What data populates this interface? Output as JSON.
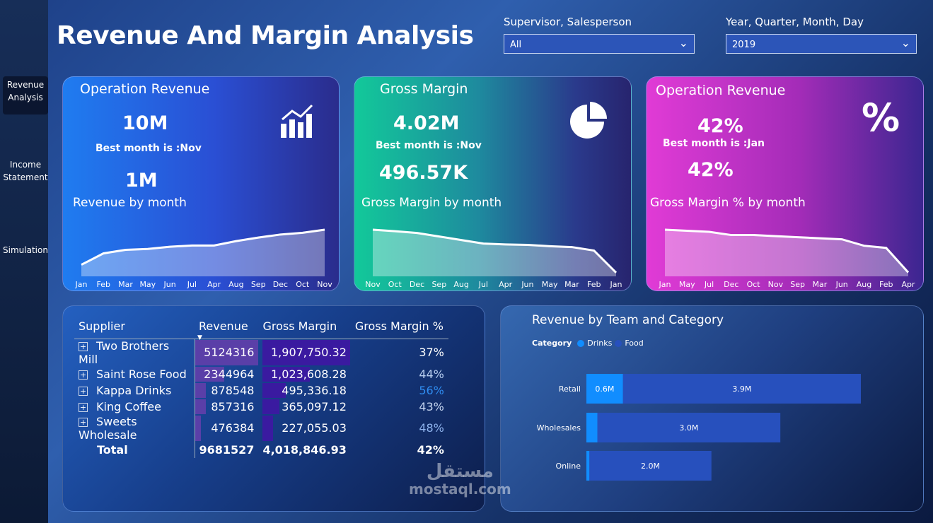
{
  "title": "Revenue And Margin Analysis",
  "sidebar": {
    "items": [
      {
        "label": "Revenue Analysis",
        "active": true
      },
      {
        "label": "Income Statement"
      },
      {
        "label": "Simulation"
      }
    ]
  },
  "filters": [
    {
      "label": "Supervisor, Salesperson",
      "value": "All"
    },
    {
      "label": "Year, Quarter, Month, Day",
      "value": "2019"
    }
  ],
  "cards": [
    {
      "title": "Operation Revenue",
      "kpi": "10M",
      "best": "Best month is :Nov",
      "kpi2": "1M",
      "subtitle": "Revenue by month",
      "icon": "bar-chart-icon",
      "months": [
        "Jan",
        "Feb",
        "Mar",
        "May",
        "Jun",
        "Jul",
        "Apr",
        "Aug",
        "Sep",
        "Dec",
        "Oct",
        "Nov"
      ],
      "values": [
        0.2,
        0.46,
        0.54,
        0.56,
        0.61,
        0.64,
        0.64,
        0.74,
        0.82,
        0.89,
        0.93,
        1.0
      ]
    },
    {
      "title": "Gross Margin",
      "kpi": "4.02M",
      "best": "Best month is :Nov",
      "kpi2": "496.57K",
      "subtitle": "Gross Margin by month",
      "icon": "pie-chart-icon",
      "months": [
        "Nov",
        "Oct",
        "Dec",
        "Sep",
        "Aug",
        "Jul",
        "Apr",
        "Jun",
        "May",
        "Mar",
        "Feb",
        "Jan"
      ],
      "values": [
        497,
        480,
        460,
        420,
        380,
        340,
        330,
        325,
        310,
        300,
        260,
        10
      ]
    },
    {
      "title": "Operation Revenue",
      "kpi": "42%",
      "best": "Best month is :Jan",
      "kpi2": "42%",
      "subtitle": "Gross Margin % by month",
      "icon": "percent-icon",
      "icon_text": "%",
      "months": [
        "Jan",
        "May",
        "Jul",
        "Dec",
        "Oct",
        "Nov",
        "Sep",
        "Mar",
        "Jun",
        "Aug",
        "Feb",
        "Apr"
      ],
      "values": [
        42,
        41.9,
        41.8,
        41.5,
        41.5,
        41.4,
        41.3,
        41.2,
        41.1,
        40.5,
        40.3,
        38
      ]
    }
  ],
  "table": {
    "headers": [
      "Supplier",
      "Revenue",
      "Gross Margin",
      "Gross Margin %"
    ],
    "rows": [
      {
        "supplier": "Two Brothers Mill",
        "revenue": "5124316",
        "margin": "1,907,750.32",
        "pct": "37%",
        "rev_num": 5124316,
        "gm_num": 1907750.32,
        "pct_color": "#ffffff"
      },
      {
        "supplier": "Saint Rose Food",
        "revenue": "2344964",
        "margin": "1,023,608.28",
        "pct": "44%",
        "rev_num": 2344964,
        "gm_num": 1023608.28,
        "pct_color": "#b8cef0"
      },
      {
        "supplier": "Kappa Drinks",
        "revenue": "878548",
        "margin": "495,336.18",
        "pct": "56%",
        "rev_num": 878548,
        "gm_num": 495336.18,
        "pct_color": "#2f8cf0"
      },
      {
        "supplier": "King Coffee",
        "revenue": "857316",
        "margin": "365,097.12",
        "pct": "43%",
        "rev_num": 857316,
        "gm_num": 365097.12,
        "pct_color": "#c8d8f2"
      },
      {
        "supplier": "Sweets Wholesale",
        "revenue": "476384",
        "margin": "227,055.03",
        "pct": "48%",
        "rev_num": 476384,
        "gm_num": 227055.03,
        "pct_color": "#8fb4ee"
      }
    ],
    "total": {
      "label": "Total",
      "revenue": "9681527",
      "margin": "4,018,846.93",
      "pct": "42%"
    }
  },
  "chart_data": {
    "type": "bar",
    "title": "Revenue by Team and Category",
    "legend_title": "Category",
    "categories": [
      "Retail",
      "Wholesales",
      "Online"
    ],
    "series": [
      {
        "name": "Drinks",
        "color": "#118dff",
        "values": [
          0.6,
          0.18,
          0.05
        ],
        "labels": [
          "0.6M",
          "",
          ""
        ]
      },
      {
        "name": "Food",
        "color": "#2750bd",
        "values": [
          3.9,
          3.0,
          2.0
        ],
        "labels": [
          "3.9M",
          "3.0M",
          "2.0M"
        ]
      }
    ],
    "stacked": true,
    "orientation": "horizontal",
    "legend": "top-left"
  },
  "watermark": {
    "arabic": "مستقل",
    "latin": "mostaql.com"
  }
}
